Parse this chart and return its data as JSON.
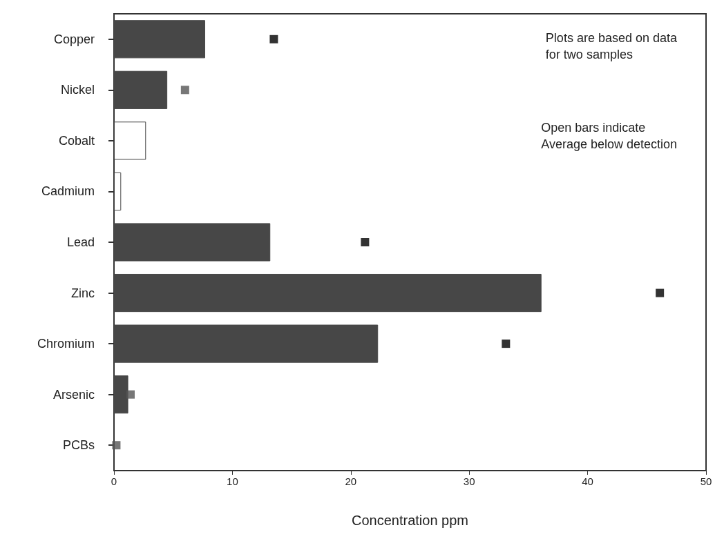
{
  "chart_data": {
    "type": "bar",
    "orientation": "horizontal",
    "xlabel": "Concentration ppm",
    "categories": [
      "Copper",
      "Nickel",
      "Cobalt",
      "Cadmium",
      "Lead",
      "Zinc",
      "Chromium",
      "Arsenic",
      "PCBs"
    ],
    "series": [
      {
        "values": [
          7.7,
          4.5,
          2.7,
          0.6,
          13.2,
          36.1,
          22.3,
          1.2,
          null
        ],
        "colors": [
          "#474747",
          "#474747",
          "#ffffff",
          "#ffffff",
          "#474747",
          "#474747",
          "#474747",
          "#474747",
          "#474747"
        ]
      },
      {
        "type": "scatter",
        "marker": "square",
        "values": [
          13.5,
          6.0,
          null,
          null,
          21.2,
          46.1,
          33.1,
          1.4,
          0.2
        ],
        "colors": [
          "#000000",
          "#555555",
          null,
          null,
          "#000000",
          "#000000",
          "#000000",
          "#555555",
          "#555555"
        ]
      }
    ],
    "xlim": [
      0,
      50
    ],
    "xticks": [
      0,
      10,
      20,
      30,
      40,
      50
    ],
    "grid": false,
    "annotations": [
      "Plots are based on data\nfor two samples",
      "Open bars indicate\nAverage below detection"
    ]
  }
}
